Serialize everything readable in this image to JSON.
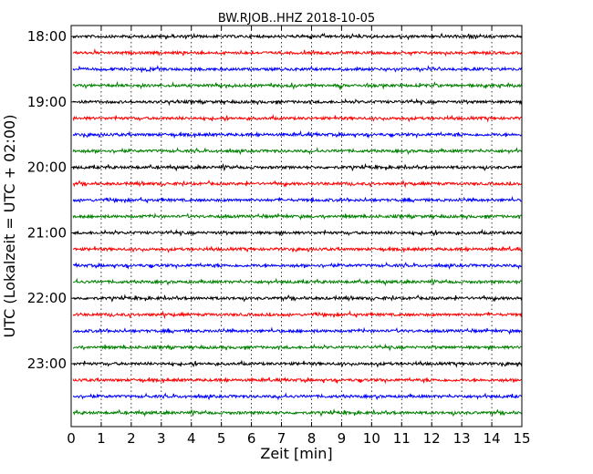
{
  "chart_data": {
    "type": "line",
    "title": "BW.RJOB..HHZ 2018-10-05",
    "xlabel": "Zeit  [min]",
    "ylabel": "UTC (Lokalzeit = UTC + 02:00)",
    "xlim": [
      0,
      15
    ],
    "x_ticks": [
      "0",
      "1",
      "2",
      "3",
      "4",
      "5",
      "6",
      "7",
      "8",
      "9",
      "10",
      "11",
      "12",
      "13",
      "14",
      "15"
    ],
    "y_tick_labels": [
      "18:00",
      "19:00",
      "20:00",
      "21:00",
      "22:00",
      "23:00"
    ],
    "grid": "vertical dotted at each minute",
    "trace_interval_minutes": 15,
    "trace_colors": [
      "#000000",
      "#ff0000",
      "#0000ff",
      "#008000"
    ],
    "traces": [
      {
        "start": "18:00"
      },
      {
        "start": "18:15"
      },
      {
        "start": "18:30"
      },
      {
        "start": "18:45"
      },
      {
        "start": "19:00"
      },
      {
        "start": "19:15"
      },
      {
        "start": "19:30"
      },
      {
        "start": "19:45"
      },
      {
        "start": "20:00"
      },
      {
        "start": "20:15"
      },
      {
        "start": "20:30"
      },
      {
        "start": "20:45"
      },
      {
        "start": "21:00"
      },
      {
        "start": "21:15"
      },
      {
        "start": "21:30"
      },
      {
        "start": "21:45"
      },
      {
        "start": "22:00"
      },
      {
        "start": "22:15"
      },
      {
        "start": "22:30"
      },
      {
        "start": "22:45"
      },
      {
        "start": "23:00"
      },
      {
        "start": "23:15"
      },
      {
        "start": "23:30"
      },
      {
        "start": "23:45"
      }
    ]
  }
}
